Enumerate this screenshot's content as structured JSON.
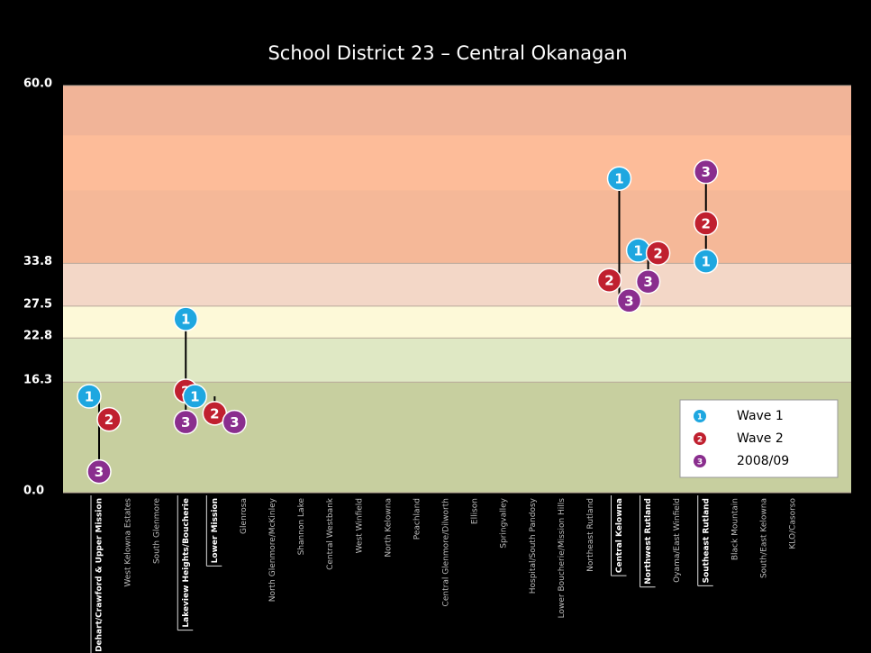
{
  "chart_data": {
    "type": "dot",
    "title": "School District 23 – Central Okanagan",
    "categories": [
      "Dehart/Crawford & Upper Mission",
      "West Kelowna Estates",
      "South Glenmore",
      "Lakeview Heights/Boucherie",
      "Lower Mission",
      "Glenrosa",
      "North Glenmore/McKinley",
      "Shannon Lake",
      "Central Westbank",
      "West Winfield",
      "North Kelowna",
      "Peachland",
      "Central Glenmore/Dilworth",
      "Ellison",
      "Springvalley",
      "Hospital/South Pandosy",
      "Lower Boucherie/Mission Hills",
      "Northeast Rutland",
      "Central Kelowna",
      "Northwest Rutland",
      "Oyama/East Winfield",
      "Southeast Rutland",
      "Black Mountain",
      "South/East Kelowna",
      "KLO/Casorso"
    ],
    "highlighted": [
      0,
      3,
      4,
      18,
      19,
      21
    ],
    "series": [
      {
        "name": "Wave 1",
        "marker": "1",
        "color": "#1ea7e0",
        "values": [
          14.2,
          null,
          null,
          25.6,
          14.2,
          null,
          null,
          null,
          null,
          null,
          null,
          null,
          null,
          null,
          null,
          null,
          null,
          null,
          46.3,
          35.7,
          null,
          34.1,
          null,
          null,
          null
        ]
      },
      {
        "name": "Wave 2",
        "marker": "2",
        "color": "#c0202f",
        "values": [
          10.8,
          null,
          null,
          15.0,
          11.7,
          null,
          null,
          null,
          null,
          null,
          null,
          null,
          null,
          null,
          null,
          null,
          null,
          null,
          31.3,
          35.3,
          null,
          39.7,
          null,
          null,
          null
        ]
      },
      {
        "name": "2008/09",
        "marker": "3",
        "color": "#8a2e8e",
        "values": [
          3.1,
          null,
          null,
          10.4,
          10.4,
          null,
          null,
          null,
          null,
          null,
          null,
          null,
          null,
          null,
          null,
          null,
          null,
          null,
          28.3,
          31.1,
          null,
          47.3,
          null,
          null,
          null
        ]
      }
    ],
    "ylim": [
      0,
      60
    ],
    "yticks": [
      {
        "value": 0,
        "label": "0.0"
      },
      16.3,
      22.8,
      27.5,
      33.8,
      {
        "value": 60,
        "label": "60.0"
      }
    ],
    "band_colors": [
      "#c7cf9f",
      "#dfe8c4",
      "#fdf9d8",
      "#f3d7c7",
      "#f5b898"
    ],
    "legend": "lower right"
  }
}
